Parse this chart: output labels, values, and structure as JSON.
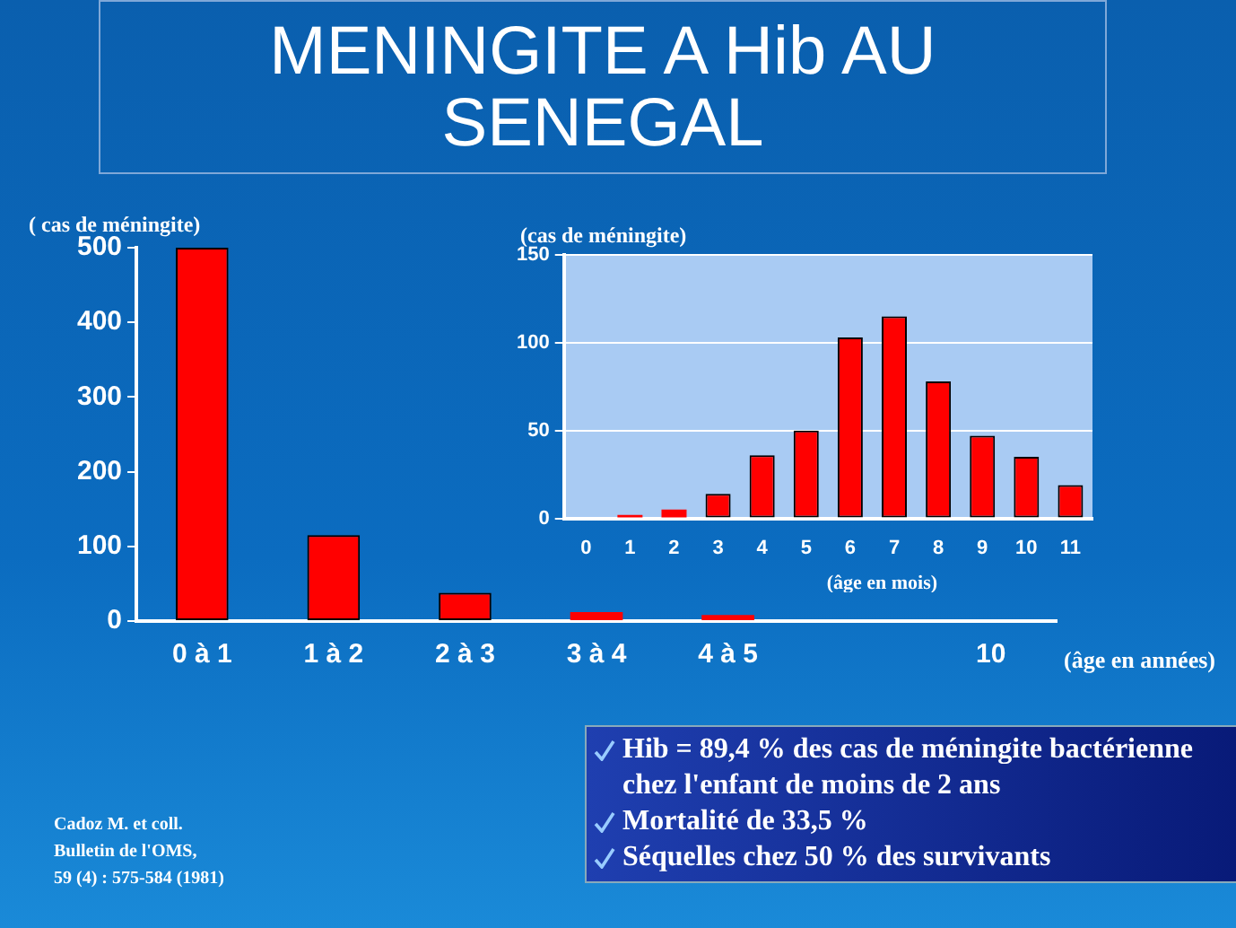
{
  "chart_data": [
    {
      "type": "bar",
      "title": "MENINGITE A Hib AU SENEGAL",
      "ylabel": "( cas de méningite)",
      "xlabel": "(âge en années)",
      "categories": [
        "0 à 1",
        "1 à 2",
        "2 à 3",
        "3 à 4",
        "4 à 5",
        null,
        "10"
      ],
      "values": [
        500,
        115,
        38,
        12,
        8,
        null,
        null
      ],
      "color": "#ff0000",
      "ylim": [
        0,
        500
      ],
      "yticks": [
        0,
        100,
        200,
        300,
        400,
        500
      ],
      "grid": false,
      "annotations": [
        "Cadoz M. et coll.\nBulletin de l'OMS,\n59 (4) : 575-584 (1981)",
        "Hib = 89,4 % des cas de méningite bactérienne chez l'enfant de moins de 2 ans",
        "Mortalité de 33,5 %",
        "Séquelles chez 50 % des survivants"
      ]
    },
    {
      "type": "bar",
      "ylabel": "(cas de méningite)",
      "xlabel": "(âge en mois)",
      "categories": [
        "0",
        "1",
        "2",
        "3",
        "4",
        "5",
        "6",
        "7",
        "8",
        "9",
        "10",
        "11"
      ],
      "values": [
        0,
        2,
        5,
        14,
        36,
        50,
        103,
        115,
        78,
        47,
        35,
        19
      ],
      "color": "#ff0000",
      "ylim": [
        0,
        150
      ],
      "yticks": [
        0,
        50,
        100,
        150
      ],
      "grid": "y"
    }
  ]
}
